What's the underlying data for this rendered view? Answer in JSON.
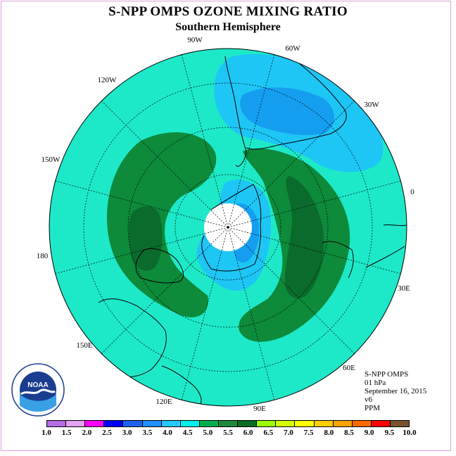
{
  "title": "S-NPP OMPS OZONE MIXING RATIO",
  "subtitle": "Southern Hemisphere",
  "longitude_labels": [
    "90W",
    "60W",
    "30W",
    "0",
    "30E",
    "60E",
    "90E",
    "120E",
    "150E",
    "180",
    "150W",
    "120W"
  ],
  "info": {
    "instrument": "S-NPP OMPS",
    "level": "01 hPa",
    "date": "September 16, 2015",
    "version": "v6",
    "units": "PPM"
  },
  "logo_text": "NOAA",
  "colorbar": {
    "ticks": [
      "1.0",
      "1.5",
      "2.0",
      "2.5",
      "3.0",
      "3.5",
      "4.0",
      "4.5",
      "5.0",
      "5.5",
      "6.0",
      "6.5",
      "7.0",
      "7.5",
      "8.0",
      "8.5",
      "9.0",
      "9.5",
      "10.0"
    ],
    "colors": [
      "#b36be6",
      "#e6a3f0",
      "#ff00ff",
      "#0000ff",
      "#1e62f0",
      "#1e90ff",
      "#22c8ff",
      "#00f0f0",
      "#00b050",
      "#1b8a3a",
      "#0a6b24",
      "#9aff00",
      "#d4ff00",
      "#ffff00",
      "#ffd000",
      "#ffa500",
      "#ff6a00",
      "#ff0000",
      "#7a5230"
    ]
  },
  "map_fields": {
    "background_class": "4.5-5.0",
    "background_color": "#1de9c8",
    "green_ring_class": "5.5-6.0",
    "green_ring_color": "#0d8a3a",
    "dark_green_class": "6.0-6.5",
    "dark_green_color": "#0a6b2c",
    "light_blue_class": "4.0-4.5",
    "light_blue_color": "#1ec6f5",
    "mid_blue_class": "3.5-4.0",
    "mid_blue_color": "#159ef0",
    "missing_data_color": "#ffffff"
  }
}
